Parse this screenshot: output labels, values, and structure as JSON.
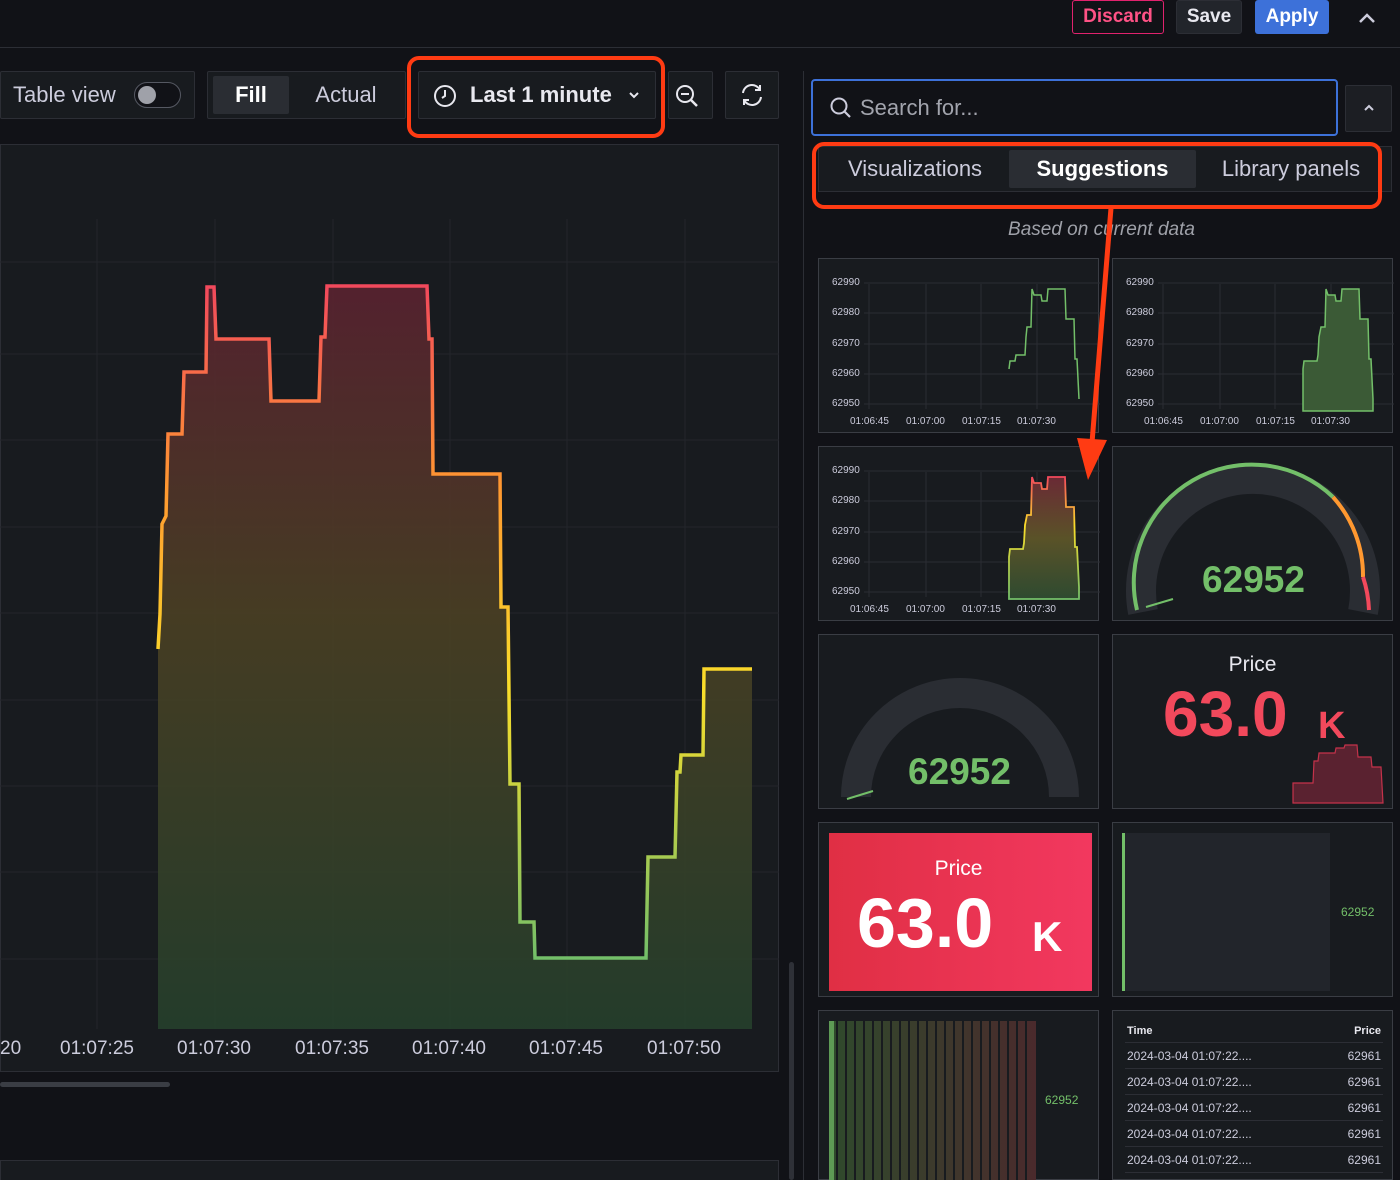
{
  "topbar": {
    "discard": "Discard",
    "save": "Save",
    "apply": "Apply"
  },
  "toolbar": {
    "table_view": "Table view",
    "table_view_on": false,
    "fill": "Fill",
    "actual": "Actual",
    "time_range": "Last 1 minute"
  },
  "main_chart": {
    "x_ticks": [
      "20",
      "01:07:25",
      "01:07:30",
      "01:07:35",
      "01:07:40",
      "01:07:45",
      "01:07:50"
    ]
  },
  "search": {
    "placeholder": "Search for..."
  },
  "tabs": [
    {
      "label": "Visualizations",
      "active": false
    },
    {
      "label": "Suggestions",
      "active": true
    },
    {
      "label": "Library panels",
      "active": false
    }
  ],
  "based_on": "Based on current data",
  "suggestions": {
    "mini_y_ticks": [
      "62990",
      "62980",
      "62970",
      "62960",
      "62950"
    ],
    "mini_x_ticks": [
      "01:06:45",
      "01:07:00",
      "01:07:15",
      "01:07:30"
    ],
    "gauge_value": "62952",
    "stat_title": "Price",
    "stat_value": "63.0",
    "stat_unit": "K",
    "bar_value": "62952",
    "table": {
      "headers": [
        "Time",
        "Price"
      ],
      "rows": [
        [
          "2024-03-04 01:07:22....",
          "62961"
        ],
        [
          "2024-03-04 01:07:22....",
          "62961"
        ],
        [
          "2024-03-04 01:07:22....",
          "62961"
        ],
        [
          "2024-03-04 01:07:22....",
          "62961"
        ],
        [
          "2024-03-04 01:07:22....",
          "62961"
        ]
      ]
    }
  },
  "colors": {
    "accent_blue": "#3d71d9",
    "discard": "#e0226e",
    "annotation": "#ff3b13",
    "green": "#73bf69",
    "red": "#f2495c"
  }
}
